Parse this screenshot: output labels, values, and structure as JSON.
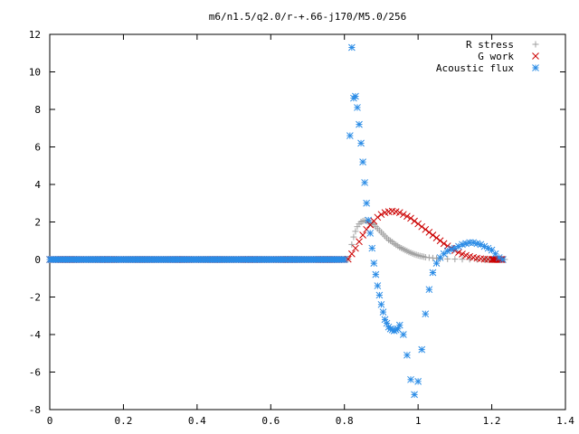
{
  "chart_data": {
    "type": "scatter",
    "title": "m6/n1.5/q2.0/r-+.66-j170/M5.0/256",
    "xlabel": "",
    "ylabel": "",
    "xlim": [
      0,
      1.4
    ],
    "ylim": [
      -8,
      12
    ],
    "xticks": [
      0,
      0.2,
      0.4,
      0.6,
      0.8,
      1,
      1.2,
      1.4
    ],
    "xtick_labels": [
      "0",
      "0.2",
      "0.4",
      "0.6",
      "0.8",
      "1",
      "1.2",
      "1.4"
    ],
    "yticks": [
      -8,
      -6,
      -4,
      -2,
      0,
      2,
      4,
      6,
      8,
      10,
      12
    ],
    "ytick_labels": [
      "-8",
      "-6",
      "-4",
      "-2",
      "0",
      "2",
      "4",
      "6",
      "8",
      "10",
      "12"
    ],
    "grid": false,
    "legend_position": "top-right",
    "series": [
      {
        "name": "R stress",
        "marker": "plus",
        "color": "#a0a0a0",
        "x": [
          0.0,
          0.05,
          0.1,
          0.15,
          0.2,
          0.25,
          0.3,
          0.35,
          0.4,
          0.45,
          0.5,
          0.55,
          0.6,
          0.65,
          0.7,
          0.75,
          0.8,
          0.81,
          0.82,
          0.825,
          0.83,
          0.835,
          0.84,
          0.845,
          0.85,
          0.855,
          0.86,
          0.865,
          0.87,
          0.875,
          0.88,
          0.885,
          0.89,
          0.895,
          0.9,
          0.905,
          0.91,
          0.915,
          0.92,
          0.925,
          0.93,
          0.935,
          0.94,
          0.945,
          0.95,
          0.955,
          0.96,
          0.965,
          0.97,
          0.975,
          0.98,
          0.985,
          0.99,
          0.995,
          1.0,
          1.005,
          1.01,
          1.015,
          1.02,
          1.03,
          1.04,
          1.05,
          1.06,
          1.08,
          1.1,
          1.12,
          1.14,
          1.16,
          1.18,
          1.2,
          1.22,
          1.235
        ],
        "y": [
          0,
          0,
          0,
          0,
          0,
          0,
          0,
          0,
          0,
          0,
          0,
          0,
          0,
          0,
          0,
          0,
          0,
          0.02,
          0.8,
          1.2,
          1.5,
          1.75,
          1.9,
          2.0,
          2.05,
          2.08,
          2.05,
          2.0,
          1.95,
          1.9,
          1.85,
          1.75,
          1.65,
          1.55,
          1.45,
          1.35,
          1.25,
          1.15,
          1.05,
          1.0,
          0.93,
          0.85,
          0.78,
          0.72,
          0.65,
          0.6,
          0.55,
          0.5,
          0.45,
          0.4,
          0.36,
          0.32,
          0.28,
          0.25,
          0.22,
          0.19,
          0.17,
          0.15,
          0.12,
          0.1,
          0.08,
          0.06,
          0.04,
          0.03,
          0.02,
          0.015,
          0.01,
          0.005,
          0,
          0,
          0,
          0
        ]
      },
      {
        "name": "G work",
        "marker": "cross",
        "color": "#cc0000",
        "x": [
          0.0,
          0.1,
          0.2,
          0.3,
          0.4,
          0.5,
          0.6,
          0.7,
          0.8,
          0.81,
          0.82,
          0.83,
          0.84,
          0.85,
          0.86,
          0.87,
          0.88,
          0.89,
          0.9,
          0.91,
          0.92,
          0.93,
          0.94,
          0.95,
          0.96,
          0.97,
          0.98,
          0.99,
          1.0,
          1.01,
          1.02,
          1.03,
          1.04,
          1.05,
          1.06,
          1.07,
          1.08,
          1.09,
          1.1,
          1.11,
          1.12,
          1.13,
          1.14,
          1.15,
          1.16,
          1.17,
          1.18,
          1.19,
          1.2,
          1.21,
          1.22,
          1.23
        ],
        "y": [
          0,
          0,
          0,
          0,
          0,
          0,
          0,
          0,
          0,
          0.02,
          0.3,
          0.6,
          0.95,
          1.3,
          1.6,
          1.85,
          2.05,
          2.25,
          2.4,
          2.5,
          2.55,
          2.58,
          2.55,
          2.5,
          2.4,
          2.3,
          2.2,
          2.05,
          1.9,
          1.75,
          1.6,
          1.45,
          1.3,
          1.15,
          1.0,
          0.85,
          0.72,
          0.6,
          0.48,
          0.38,
          0.29,
          0.22,
          0.16,
          0.11,
          0.07,
          0.04,
          0.02,
          0.01,
          0,
          0,
          0,
          0
        ]
      },
      {
        "name": "Acoustic flux",
        "marker": "star",
        "color": "#2b8ce6",
        "x": [
          0.0,
          0.05,
          0.1,
          0.15,
          0.2,
          0.25,
          0.3,
          0.35,
          0.4,
          0.45,
          0.5,
          0.55,
          0.6,
          0.65,
          0.7,
          0.75,
          0.8,
          0.815,
          0.82,
          0.825,
          0.83,
          0.835,
          0.84,
          0.845,
          0.85,
          0.855,
          0.86,
          0.865,
          0.87,
          0.875,
          0.88,
          0.885,
          0.89,
          0.895,
          0.9,
          0.905,
          0.91,
          0.915,
          0.92,
          0.925,
          0.93,
          0.935,
          0.94,
          0.945,
          0.95,
          0.96,
          0.97,
          0.98,
          0.99,
          1.0,
          1.01,
          1.02,
          1.03,
          1.04,
          1.05,
          1.06,
          1.07,
          1.08,
          1.09,
          1.1,
          1.11,
          1.12,
          1.13,
          1.14,
          1.15,
          1.16,
          1.17,
          1.18,
          1.19,
          1.2,
          1.21,
          1.22,
          1.23
        ],
        "y": [
          0,
          0,
          0,
          0,
          0,
          0,
          0,
          0,
          0,
          0,
          0,
          0,
          0,
          0,
          0,
          0,
          0,
          6.6,
          11.3,
          8.6,
          8.7,
          8.1,
          7.2,
          6.2,
          5.2,
          4.1,
          3.0,
          2.1,
          1.4,
          0.6,
          -0.2,
          -0.8,
          -1.4,
          -1.9,
          -2.4,
          -2.8,
          -3.2,
          -3.4,
          -3.6,
          -3.7,
          -3.75,
          -3.8,
          -3.75,
          -3.7,
          -3.5,
          -4.0,
          -5.1,
          -6.4,
          -7.2,
          -6.5,
          -4.8,
          -2.9,
          -1.6,
          -0.7,
          -0.2,
          0.1,
          0.3,
          0.45,
          0.55,
          0.6,
          0.7,
          0.8,
          0.85,
          0.9,
          0.9,
          0.85,
          0.8,
          0.7,
          0.6,
          0.5,
          0.3,
          0.1,
          0
        ]
      }
    ]
  }
}
